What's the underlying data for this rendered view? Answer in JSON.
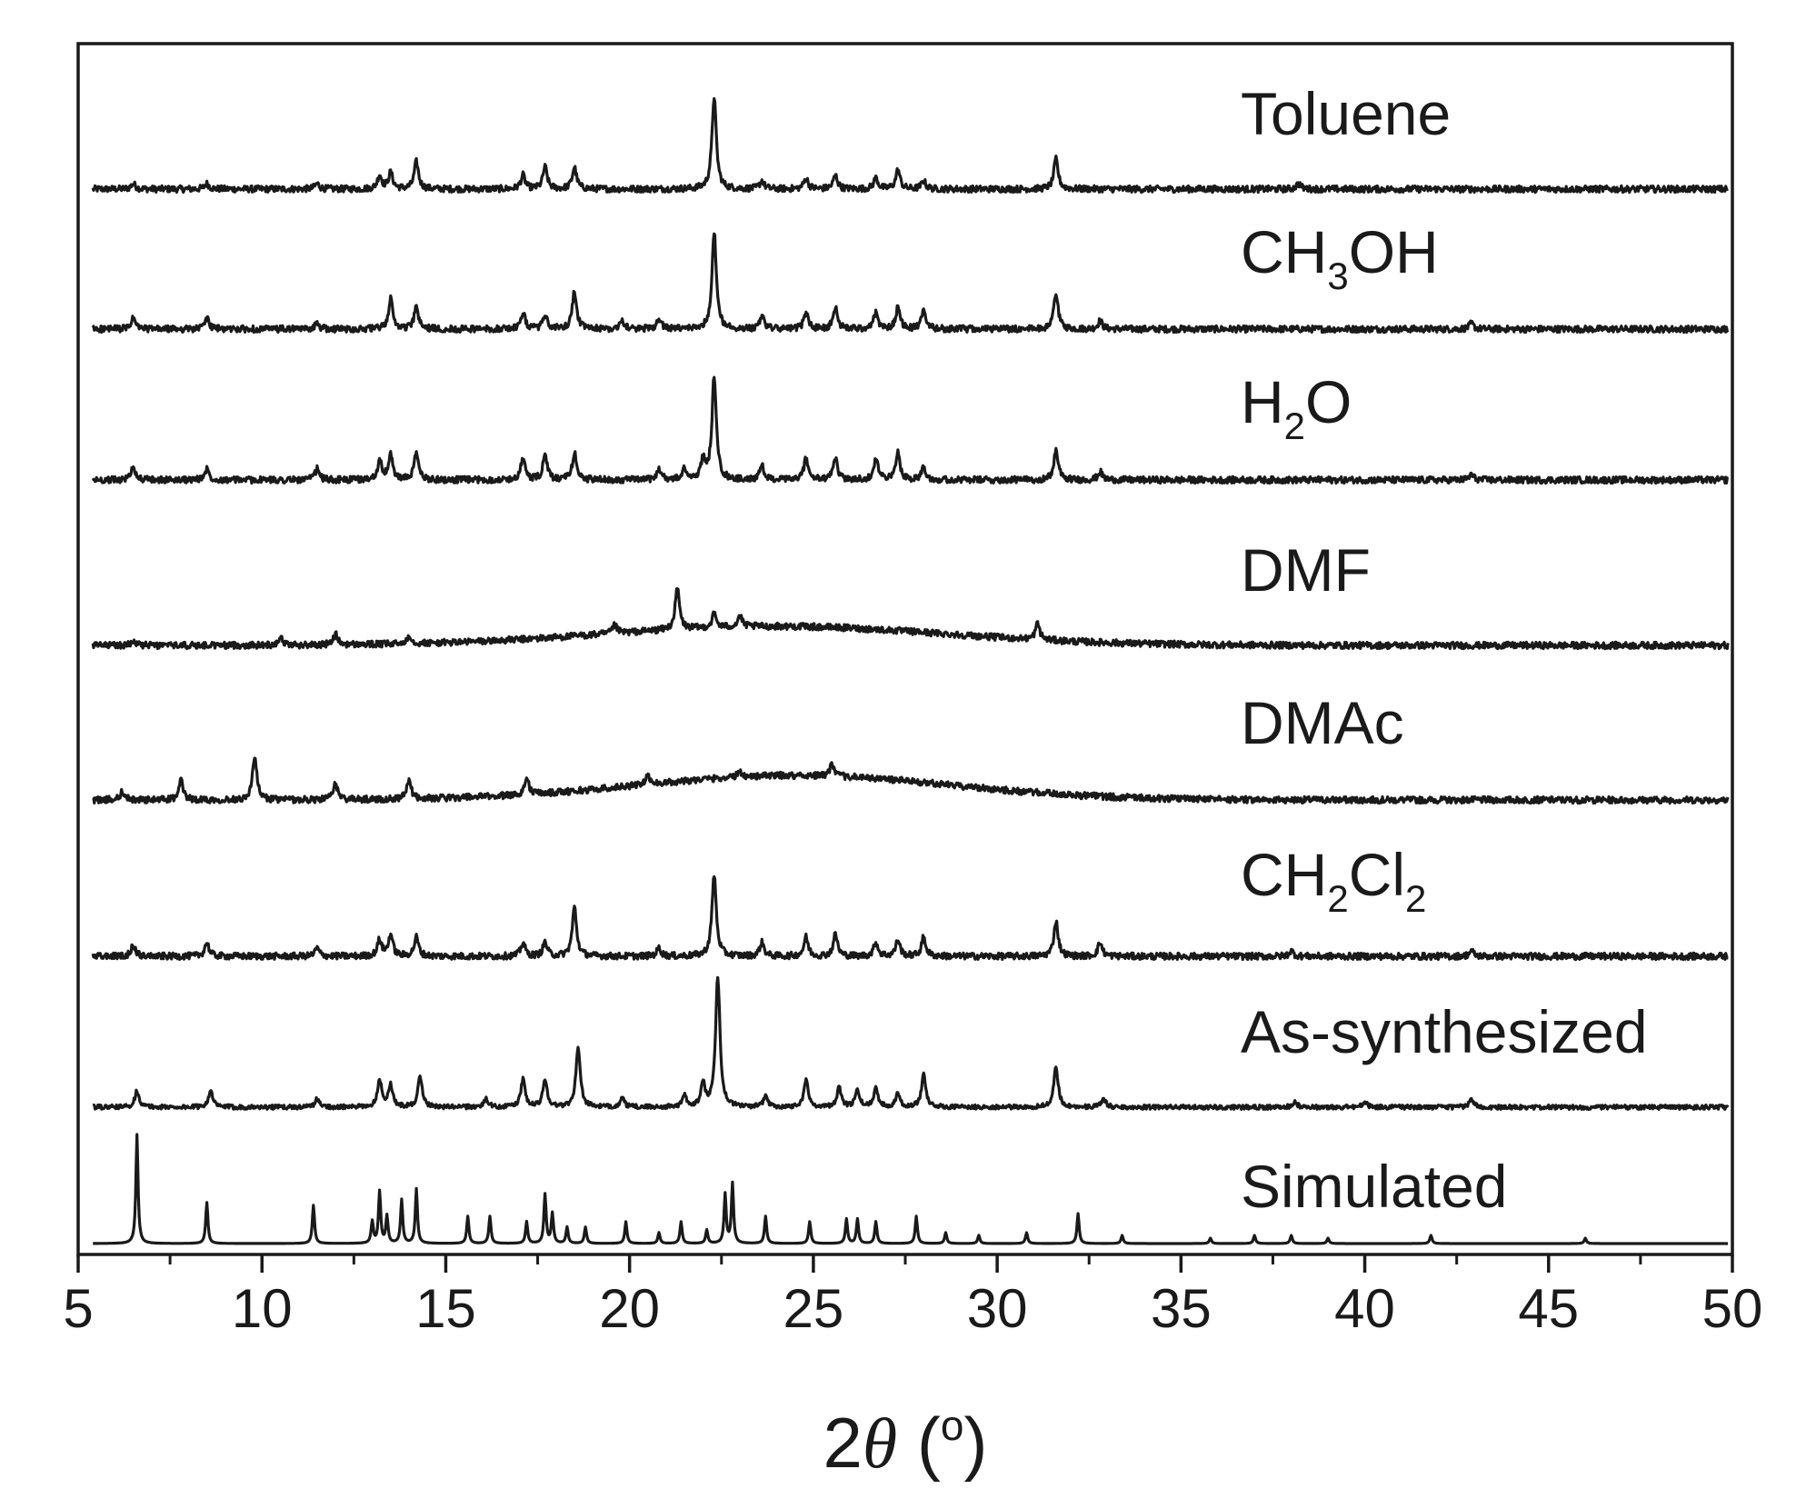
{
  "chart_data": {
    "type": "line",
    "title": "",
    "xlabel_prefix": "2",
    "xlabel_symbol": "θ",
    "xlabel_unit_open": " (",
    "xlabel_unit_sup": "o",
    "xlabel_unit_close": ")",
    "ylabel": "",
    "xlim": [
      5,
      50
    ],
    "x_ticks": [
      5,
      10,
      15,
      20,
      25,
      30,
      35,
      40,
      45,
      50
    ],
    "x_tick_labels": [
      "5",
      "10",
      "15",
      "20",
      "25",
      "30",
      "35",
      "40",
      "45",
      "50"
    ],
    "stacked": true,
    "grid": false,
    "series": [
      {
        "name": "Toluene",
        "label_parts": [
          {
            "t": "Toluene"
          }
        ],
        "baseline": 0.02,
        "noise": 0.006,
        "hump": null,
        "peaks": [
          [
            6.5,
            0.01
          ],
          [
            8.5,
            0.01
          ],
          [
            11.5,
            0.01
          ],
          [
            13.2,
            0.025
          ],
          [
            13.5,
            0.03
          ],
          [
            14.2,
            0.05
          ],
          [
            17.1,
            0.025
          ],
          [
            17.7,
            0.04
          ],
          [
            18.5,
            0.04
          ],
          [
            22.3,
            0.17
          ],
          [
            23.6,
            0.015
          ],
          [
            24.8,
            0.02
          ],
          [
            25.6,
            0.025
          ],
          [
            26.7,
            0.02
          ],
          [
            27.3,
            0.035
          ],
          [
            28.0,
            0.015
          ],
          [
            31.6,
            0.055
          ],
          [
            38.2,
            0.01
          ]
        ]
      },
      {
        "name": "CH3OH",
        "label_parts": [
          {
            "t": "CH"
          },
          {
            "t": "3",
            "sub": true
          },
          {
            "t": "OH"
          }
        ],
        "baseline": 0.02,
        "noise": 0.006,
        "hump": null,
        "peaks": [
          [
            6.5,
            0.02
          ],
          [
            8.5,
            0.02
          ],
          [
            11.5,
            0.01
          ],
          [
            13.5,
            0.055
          ],
          [
            14.2,
            0.04
          ],
          [
            17.1,
            0.03
          ],
          [
            17.7,
            0.025
          ],
          [
            18.5,
            0.07
          ],
          [
            19.8,
            0.015
          ],
          [
            20.8,
            0.02
          ],
          [
            22.3,
            0.18
          ],
          [
            23.6,
            0.025
          ],
          [
            24.8,
            0.03
          ],
          [
            25.6,
            0.04
          ],
          [
            26.7,
            0.03
          ],
          [
            27.3,
            0.04
          ],
          [
            28.0,
            0.035
          ],
          [
            31.6,
            0.065
          ],
          [
            32.8,
            0.015
          ],
          [
            42.9,
            0.01
          ]
        ]
      },
      {
        "name": "H2O",
        "label_parts": [
          {
            "t": "H"
          },
          {
            "t": "2",
            "sub": true
          },
          {
            "t": "O"
          }
        ],
        "baseline": 0.02,
        "noise": 0.006,
        "hump": null,
        "peaks": [
          [
            6.5,
            0.025
          ],
          [
            8.5,
            0.02
          ],
          [
            11.5,
            0.02
          ],
          [
            13.2,
            0.035
          ],
          [
            13.5,
            0.045
          ],
          [
            14.2,
            0.05
          ],
          [
            17.1,
            0.04
          ],
          [
            17.7,
            0.045
          ],
          [
            18.5,
            0.05
          ],
          [
            20.8,
            0.02
          ],
          [
            21.5,
            0.02
          ],
          [
            22.0,
            0.035
          ],
          [
            22.3,
            0.19
          ],
          [
            23.6,
            0.025
          ],
          [
            24.8,
            0.04
          ],
          [
            25.6,
            0.04
          ],
          [
            26.7,
            0.04
          ],
          [
            27.3,
            0.05
          ],
          [
            28.0,
            0.025
          ],
          [
            31.6,
            0.055
          ],
          [
            32.8,
            0.015
          ],
          [
            42.9,
            0.01
          ]
        ]
      },
      {
        "name": "DMF",
        "label_parts": [
          {
            "t": "DMF"
          }
        ],
        "baseline": 0.02,
        "noise": 0.006,
        "hump": [
          24.0,
          6.5,
          0.035
        ],
        "peaks": [
          [
            6.5,
            0.01
          ],
          [
            10.5,
            0.015
          ],
          [
            12.0,
            0.02
          ],
          [
            14.0,
            0.015
          ],
          [
            19.6,
            0.015
          ],
          [
            21.3,
            0.075
          ],
          [
            22.3,
            0.025
          ],
          [
            23.0,
            0.02
          ],
          [
            31.1,
            0.03
          ]
        ]
      },
      {
        "name": "DMAc",
        "label_parts": [
          {
            "t": "DMAc"
          }
        ],
        "baseline": 0.02,
        "noise": 0.006,
        "hump": [
          24.5,
          6.0,
          0.045
        ],
        "peaks": [
          [
            6.2,
            0.015
          ],
          [
            7.8,
            0.035
          ],
          [
            9.8,
            0.08
          ],
          [
            12.0,
            0.03
          ],
          [
            14.0,
            0.035
          ],
          [
            17.2,
            0.03
          ],
          [
            20.5,
            0.015
          ],
          [
            23.0,
            0.01
          ],
          [
            25.5,
            0.02
          ]
        ]
      },
      {
        "name": "CH2Cl2",
        "label_parts": [
          {
            "t": "CH"
          },
          {
            "t": "2",
            "sub": true
          },
          {
            "t": "Cl"
          },
          {
            "t": "2",
            "sub": true
          }
        ],
        "baseline": 0.02,
        "noise": 0.006,
        "hump": null,
        "peaks": [
          [
            6.5,
            0.02
          ],
          [
            8.5,
            0.025
          ],
          [
            11.5,
            0.015
          ],
          [
            13.2,
            0.03
          ],
          [
            13.5,
            0.04
          ],
          [
            14.2,
            0.035
          ],
          [
            17.1,
            0.025
          ],
          [
            17.7,
            0.025
          ],
          [
            18.5,
            0.09
          ],
          [
            20.8,
            0.015
          ],
          [
            22.3,
            0.15
          ],
          [
            23.6,
            0.025
          ],
          [
            24.8,
            0.035
          ],
          [
            25.6,
            0.04
          ],
          [
            26.7,
            0.025
          ],
          [
            27.3,
            0.03
          ],
          [
            28.0,
            0.035
          ],
          [
            31.6,
            0.065
          ],
          [
            32.8,
            0.025
          ],
          [
            38.0,
            0.01
          ],
          [
            42.9,
            0.01
          ]
        ]
      },
      {
        "name": "As-synthesized",
        "label_parts": [
          {
            "t": "As-synthesized"
          }
        ],
        "baseline": 0.02,
        "noise": 0.004,
        "hump": null,
        "peaks": [
          [
            6.6,
            0.03
          ],
          [
            8.6,
            0.03
          ],
          [
            11.5,
            0.015
          ],
          [
            13.2,
            0.05
          ],
          [
            13.5,
            0.04
          ],
          [
            14.3,
            0.055
          ],
          [
            16.1,
            0.015
          ],
          [
            17.1,
            0.05
          ],
          [
            17.7,
            0.05
          ],
          [
            18.6,
            0.11
          ],
          [
            19.8,
            0.015
          ],
          [
            21.5,
            0.02
          ],
          [
            22.0,
            0.04
          ],
          [
            22.4,
            0.24
          ],
          [
            23.7,
            0.02
          ],
          [
            24.8,
            0.05
          ],
          [
            25.7,
            0.035
          ],
          [
            26.2,
            0.03
          ],
          [
            26.7,
            0.035
          ],
          [
            27.3,
            0.025
          ],
          [
            28.0,
            0.06
          ],
          [
            31.6,
            0.075
          ],
          [
            32.9,
            0.015
          ],
          [
            38.1,
            0.01
          ],
          [
            40.0,
            0.01
          ],
          [
            42.9,
            0.015
          ]
        ]
      },
      {
        "name": "Simulated",
        "label_parts": [
          {
            "t": "Simulated"
          }
        ],
        "baseline": 0.0,
        "noise": 0.0,
        "hump": null,
        "sharp": true,
        "peaks": [
          [
            6.6,
            0.2
          ],
          [
            8.5,
            0.075
          ],
          [
            11.4,
            0.07
          ],
          [
            13.0,
            0.04
          ],
          [
            13.2,
            0.095
          ],
          [
            13.4,
            0.05
          ],
          [
            13.8,
            0.08
          ],
          [
            14.2,
            0.1
          ],
          [
            15.6,
            0.05
          ],
          [
            16.2,
            0.05
          ],
          [
            17.2,
            0.04
          ],
          [
            17.7,
            0.09
          ],
          [
            17.9,
            0.055
          ],
          [
            18.3,
            0.03
          ],
          [
            18.8,
            0.03
          ],
          [
            19.9,
            0.04
          ],
          [
            20.8,
            0.02
          ],
          [
            21.4,
            0.04
          ],
          [
            22.1,
            0.025
          ],
          [
            22.6,
            0.09
          ],
          [
            22.8,
            0.11
          ],
          [
            23.7,
            0.05
          ],
          [
            24.9,
            0.04
          ],
          [
            25.9,
            0.045
          ],
          [
            26.2,
            0.045
          ],
          [
            26.7,
            0.04
          ],
          [
            27.8,
            0.05
          ],
          [
            28.6,
            0.02
          ],
          [
            29.5,
            0.015
          ],
          [
            30.8,
            0.02
          ],
          [
            32.2,
            0.055
          ],
          [
            33.4,
            0.015
          ],
          [
            35.8,
            0.01
          ],
          [
            37.0,
            0.015
          ],
          [
            38.0,
            0.015
          ],
          [
            39.0,
            0.01
          ],
          [
            41.8,
            0.015
          ],
          [
            46.0,
            0.01
          ]
        ]
      }
    ]
  }
}
